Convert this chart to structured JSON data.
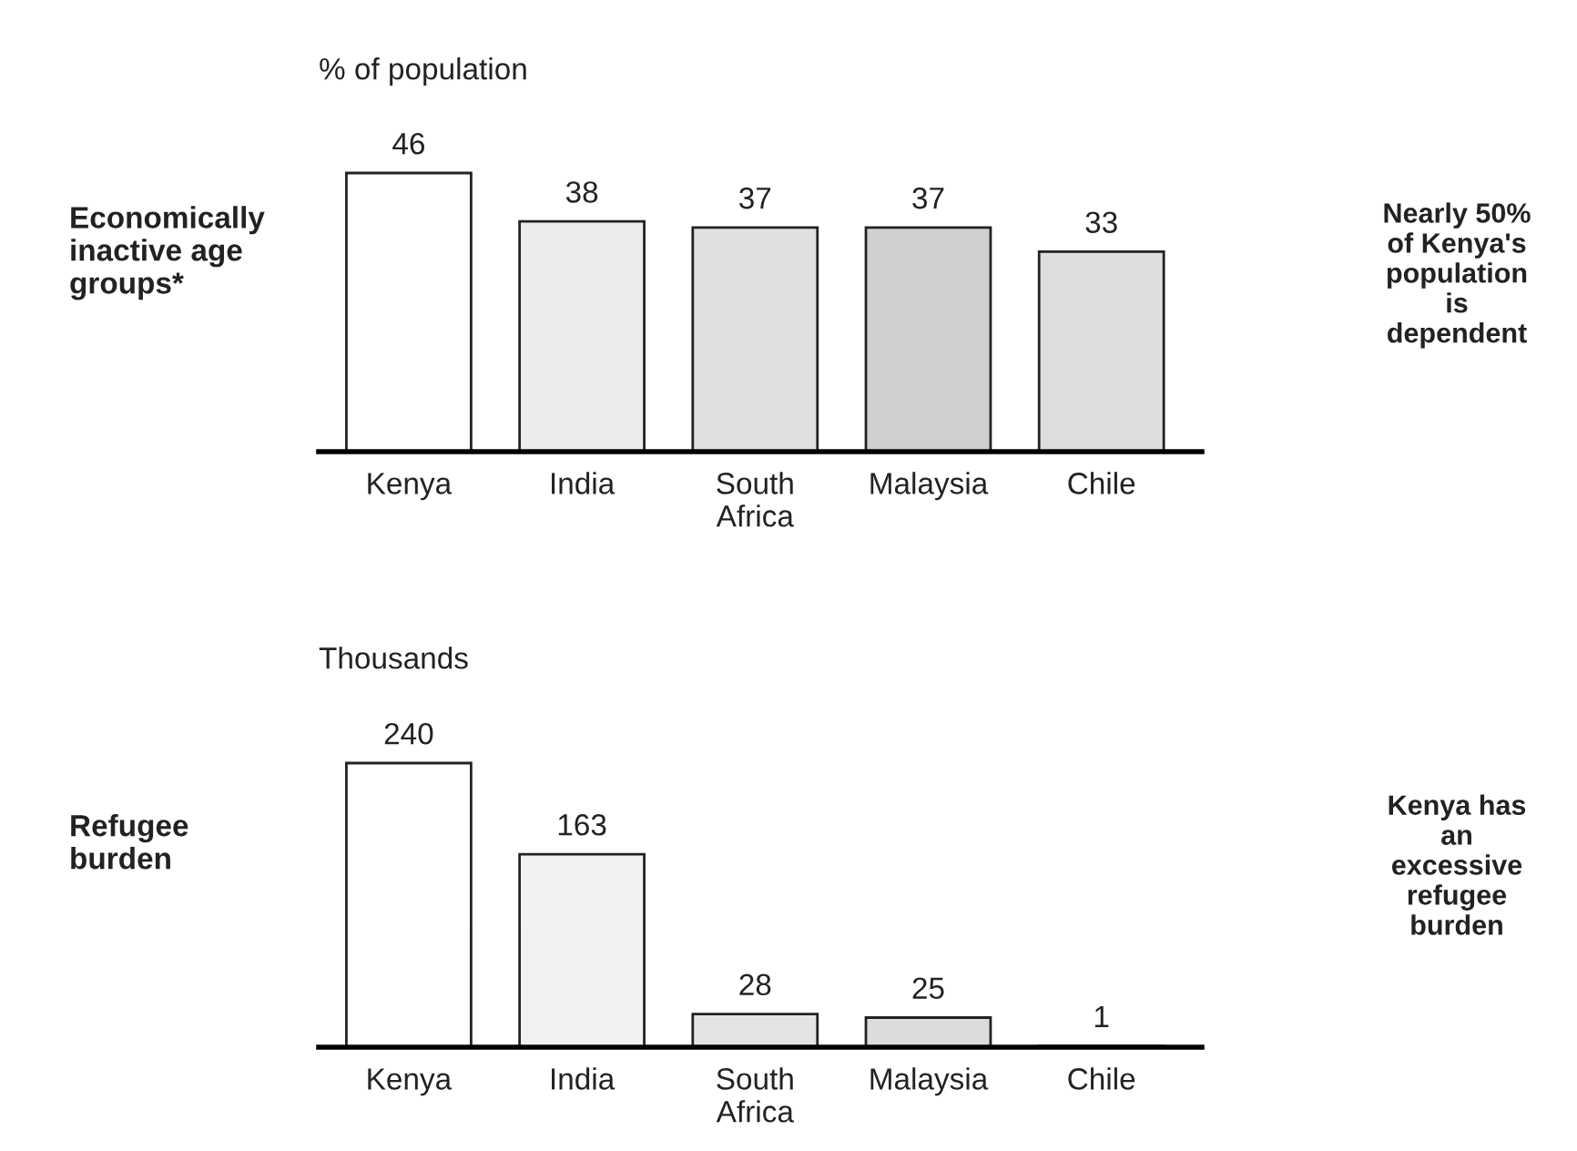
{
  "chart_data": [
    {
      "type": "bar",
      "subtitle": "% of population",
      "ylabel": "Economically\ninactive age\ngroups*",
      "categories": [
        "Kenya",
        "India",
        "South\nAfrica",
        "Malaysia",
        "Chile"
      ],
      "values": [
        46,
        38,
        37,
        37,
        33
      ],
      "colors": [
        "#ffffff",
        "#ececec",
        "#e0e0e0",
        "#cfcfcf",
        "#dedede"
      ],
      "data_labels": true,
      "tick_labels": "x",
      "grid": false,
      "legend": false,
      "annotations": [
        "Nearly 50%\nof Kenya's\npopulation\nis\ndependent"
      ]
    },
    {
      "type": "bar",
      "subtitle": "Thousands",
      "ylabel": "Refugee\nburden",
      "categories": [
        "Kenya",
        "India",
        "South\nAfrica",
        "Malaysia",
        "Chile"
      ],
      "values": [
        240,
        163,
        28,
        25,
        1
      ],
      "colors": [
        "#ffffff",
        "#f2f2f2",
        "#e4e4e4",
        "#dcdcdc",
        "#dcdcdc"
      ],
      "data_labels": true,
      "tick_labels": "x",
      "grid": false,
      "legend": false,
      "annotations": [
        "Kenya has\nan\nexcessive\nrefugee\nburden"
      ]
    }
  ]
}
